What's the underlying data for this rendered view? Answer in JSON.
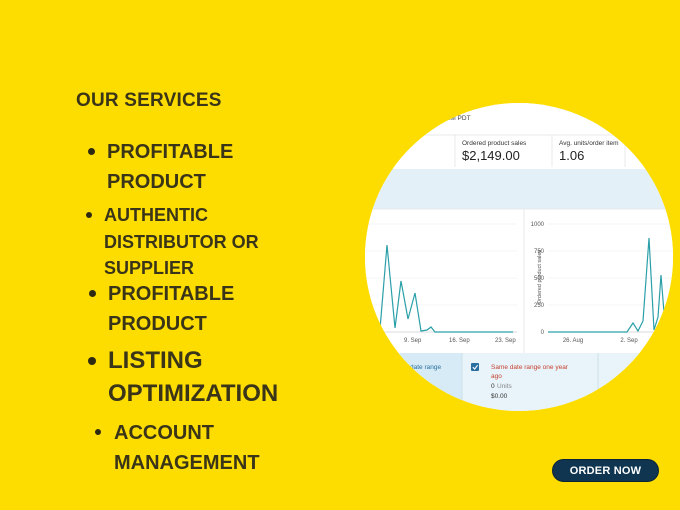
{
  "heading": "OUR SERVICES",
  "services": [
    {
      "line1": "PROFITABLE",
      "line2": "PRODUCT"
    },
    {
      "line1": "AUTHENTIC",
      "line2": "DISTRIBUTOR OR",
      "line3": "SUPPLIER"
    },
    {
      "line1": "PROFITABLE",
      "line2": "PRODUCT"
    },
    {
      "line1": "LISTING",
      "line2": "OPTIMIZATION"
    },
    {
      "line1": "ACCOUNT",
      "line2": "MANAGEMENT"
    }
  ],
  "order_button": "ORDER NOW",
  "dashboard": {
    "top_fragment": "AM PDT",
    "metric_sales_label": "Ordered product sales",
    "metric_sales_value": "$2,149.00",
    "metric_units_label": "Avg. units/order item",
    "metric_units_value": "1.06",
    "y_axis_label": "Ordered product sales",
    "y_ticks": [
      "1000",
      "750",
      "500",
      "250",
      "0"
    ],
    "left_x_ticks": [
      "9. Sep",
      "16. Sep",
      "23. Sep"
    ],
    "right_x_ticks": [
      "26. Aug",
      "2. Sep"
    ],
    "legend_left_fragment": "date range",
    "legend_compare_label_1": "Same date range one year",
    "legend_compare_label_2": "ago",
    "legend_units_value": "0",
    "legend_units_label": "Units",
    "legend_sales_value": "$0.00",
    "accent_teal": "#2a9fa8",
    "accent_red": "#c7402f"
  },
  "colors": {
    "background": "#FDDD00",
    "text": "#3a3518",
    "button": "#0f3550"
  }
}
